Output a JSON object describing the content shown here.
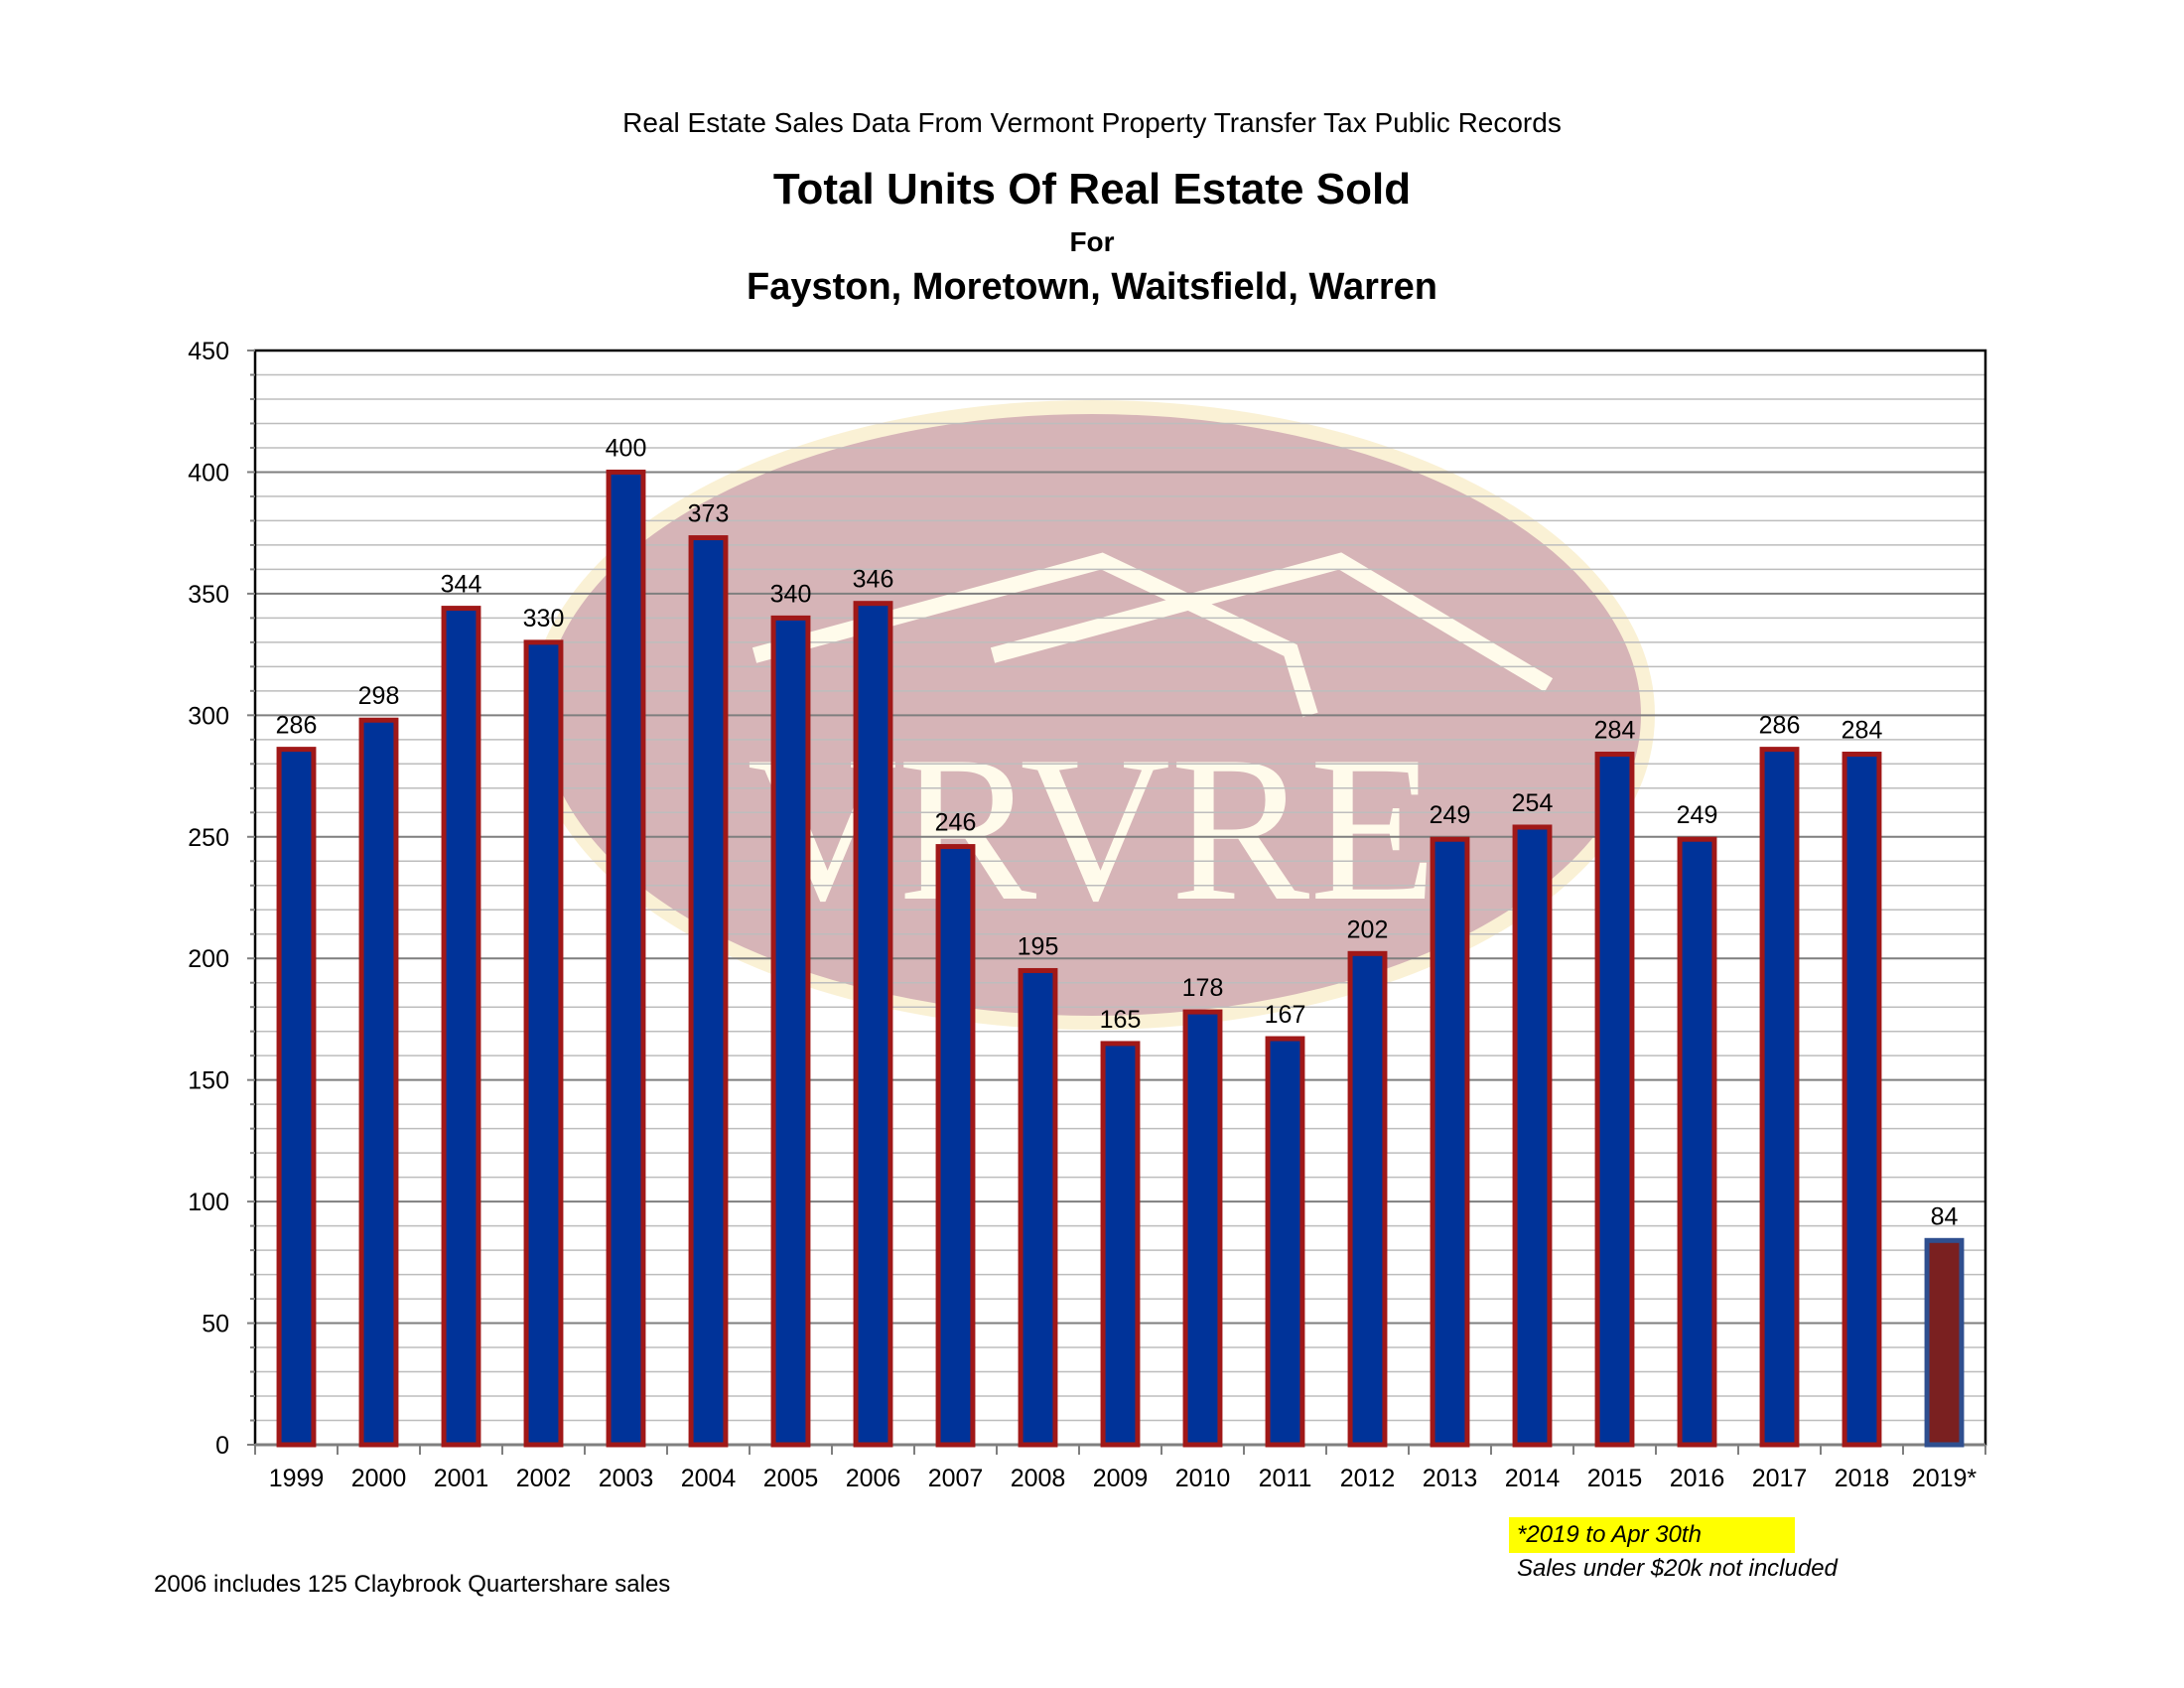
{
  "header": {
    "pre_title": "Real Estate Sales Data From Vermont Property Transfer Tax Public Records",
    "title": "Total Units Of Real Estate Sold",
    "for": "For",
    "region": "Fayston, Moretown, Waitsfield, Warren"
  },
  "watermark": {
    "text": "VRVRE"
  },
  "notes": {
    "left": "2006 includes 125 Claybrook Quartershare sales",
    "highlight": "*2019 to Apr 30th",
    "second": "Sales under $20k not included"
  },
  "colors": {
    "bar_fill": "#003399",
    "bar_outline": "#a01818",
    "last_bar_fill": "#7a2020",
    "last_bar_outline": "#2f4f8f",
    "highlight": "#ffff00"
  },
  "chart_data": {
    "type": "bar",
    "title": "Total Units Of Real Estate Sold",
    "categories": [
      "1999",
      "2000",
      "2001",
      "2002",
      "2003",
      "2004",
      "2005",
      "2006",
      "2007",
      "2008",
      "2009",
      "2010",
      "2011",
      "2012",
      "2013",
      "2014",
      "2015",
      "2016",
      "2017",
      "2018",
      "2019*"
    ],
    "values": [
      286,
      298,
      344,
      330,
      400,
      373,
      340,
      346,
      246,
      195,
      165,
      178,
      167,
      202,
      249,
      254,
      284,
      249,
      286,
      284,
      84
    ],
    "ylim": [
      0,
      450
    ],
    "yticks": [
      0,
      50,
      100,
      150,
      200,
      250,
      300,
      350,
      400,
      450
    ],
    "minor_step": 10,
    "grid": true,
    "legend": "none"
  }
}
